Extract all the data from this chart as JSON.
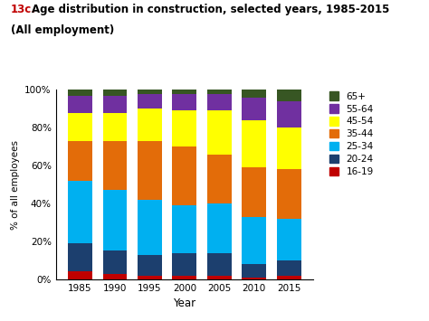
{
  "years": [
    1985,
    1990,
    1995,
    2000,
    2005,
    2010,
    2015
  ],
  "age_groups": [
    "16-19",
    "20-24",
    "25-34",
    "35-44",
    "45-54",
    "55-64",
    "65+"
  ],
  "colors": [
    "#c00000",
    "#1c3f6e",
    "#00b0f0",
    "#e36c09",
    "#ffff00",
    "#7030a0",
    "#375623"
  ],
  "data": {
    "16-19": [
      4,
      3,
      2,
      2,
      2,
      1,
      2
    ],
    "20-24": [
      15,
      12,
      11,
      12,
      12,
      7,
      8
    ],
    "25-34": [
      33,
      32,
      29,
      25,
      26,
      25,
      22
    ],
    "35-44": [
      21,
      26,
      31,
      31,
      26,
      26,
      26
    ],
    "45-54": [
      15,
      15,
      17,
      19,
      23,
      25,
      22
    ],
    "55-64": [
      9,
      9,
      8,
      9,
      9,
      12,
      14
    ],
    "65+": [
      3,
      3,
      2,
      2,
      2,
      4,
      6
    ]
  },
  "title_prefix": "13c.",
  "title_main": " Age distribution in construction, selected years, 1985-2015",
  "title_sub": "    (All employment)",
  "ylabel": "% of all employees",
  "xlabel": "Year",
  "yticks": [
    0,
    20,
    40,
    60,
    80,
    100
  ],
  "ytick_labels": [
    "0%",
    "20%",
    "40%",
    "60%",
    "80%",
    "100%"
  ],
  "background_color": "#ffffff",
  "bar_width": 3.5
}
